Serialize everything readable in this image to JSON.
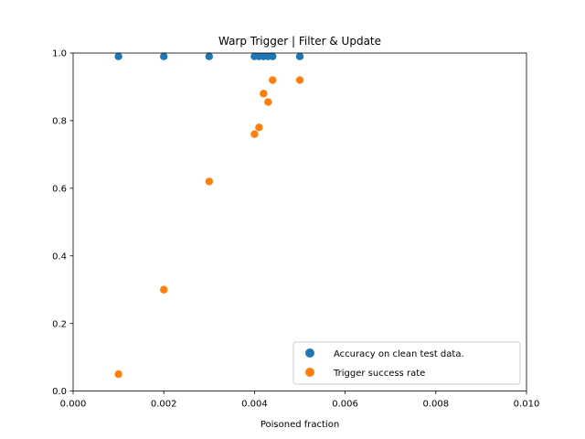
{
  "chart_data": {
    "type": "scatter",
    "title": "Warp Trigger | Filter & Update",
    "xlabel": "Poisoned fraction",
    "ylabel": "",
    "xlim": [
      0.0,
      0.01
    ],
    "ylim": [
      0.0,
      1.0
    ],
    "xticks": [
      "0.000",
      "0.002",
      "0.004",
      "0.006",
      "0.008",
      "0.010"
    ],
    "yticks": [
      "0.0",
      "0.2",
      "0.4",
      "0.6",
      "0.8",
      "1.0"
    ],
    "grid": false,
    "legend_position": "lower-right",
    "series": [
      {
        "name": "Accuracy on clean test data.",
        "color": "#1f77b4",
        "x": [
          0.001,
          0.002,
          0.003,
          0.004,
          0.0041,
          0.0042,
          0.0043,
          0.0044,
          0.005
        ],
        "y": [
          0.99,
          0.99,
          0.99,
          0.99,
          0.99,
          0.99,
          0.99,
          0.99,
          0.99
        ]
      },
      {
        "name": "Trigger success rate",
        "color": "#ff7f0e",
        "x": [
          0.001,
          0.002,
          0.003,
          0.004,
          0.0041,
          0.0042,
          0.0043,
          0.0044,
          0.005
        ],
        "y": [
          0.05,
          0.3,
          0.62,
          0.76,
          0.78,
          0.88,
          0.855,
          0.92,
          0.92
        ]
      }
    ]
  }
}
